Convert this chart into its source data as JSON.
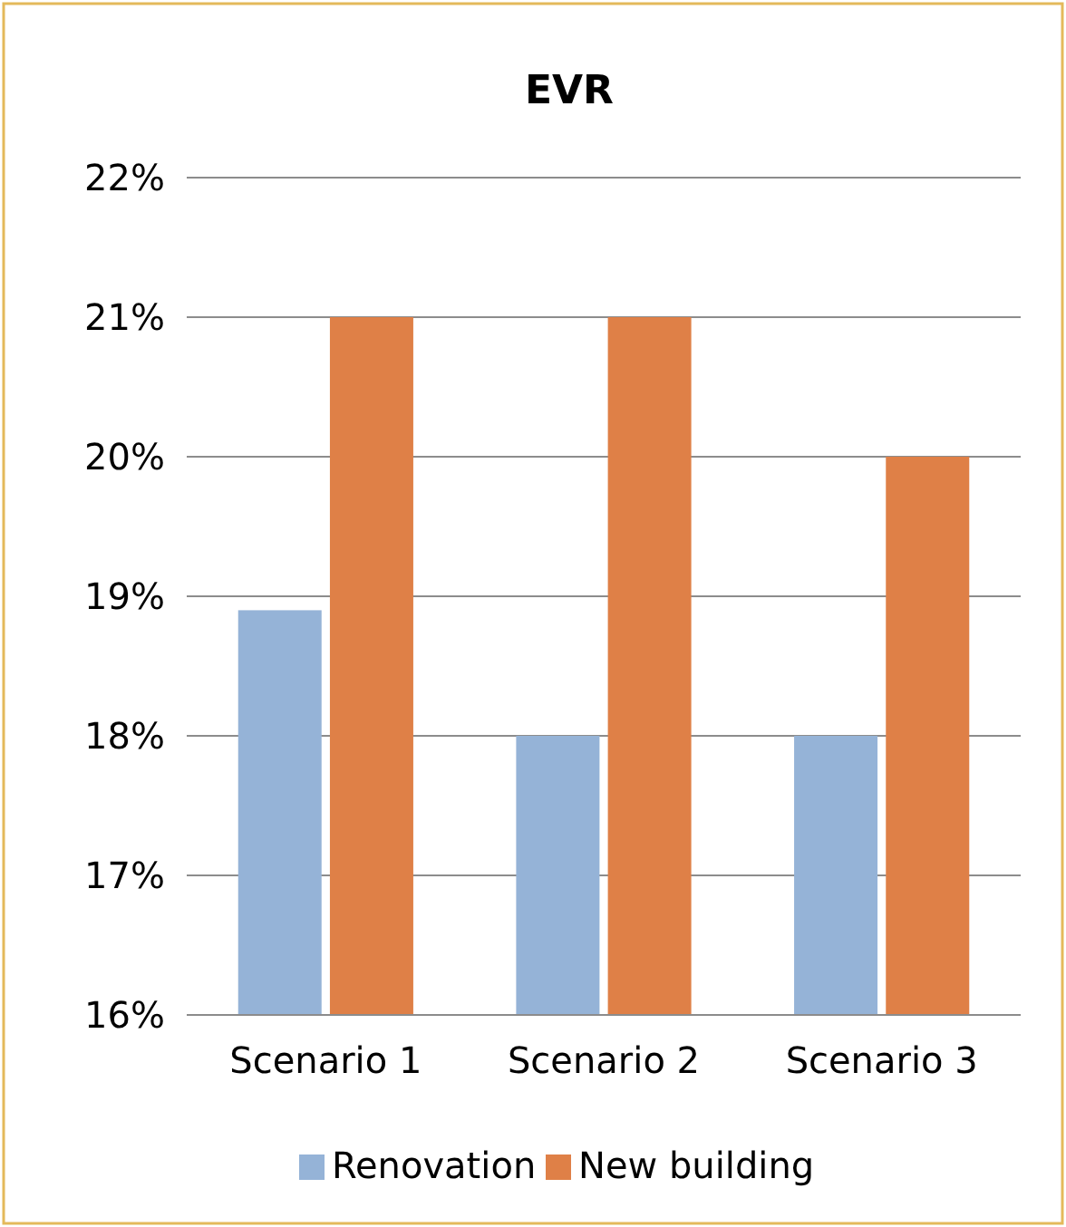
{
  "chart_data": {
    "type": "bar",
    "title": "EVR",
    "categories": [
      "Scenario 1",
      "Scenario 2",
      "Scenario 3"
    ],
    "series": [
      {
        "name": "Renovation",
        "color": "#95b3d7",
        "values": [
          18.9,
          18,
          18
        ]
      },
      {
        "name": "New building",
        "color": "#df8047",
        "values": [
          21,
          21,
          20
        ]
      }
    ],
    "ylim": [
      16,
      22
    ],
    "yticks": [
      {
        "value": 16,
        "label": "16%"
      },
      {
        "value": 17,
        "label": "17%"
      },
      {
        "value": 18,
        "label": "18%"
      },
      {
        "value": 19,
        "label": "19%"
      },
      {
        "value": 20,
        "label": "20%"
      },
      {
        "value": 21,
        "label": "21%"
      },
      {
        "value": 22,
        "label": "22%"
      }
    ],
    "grid": "y",
    "legend": "bottom"
  }
}
